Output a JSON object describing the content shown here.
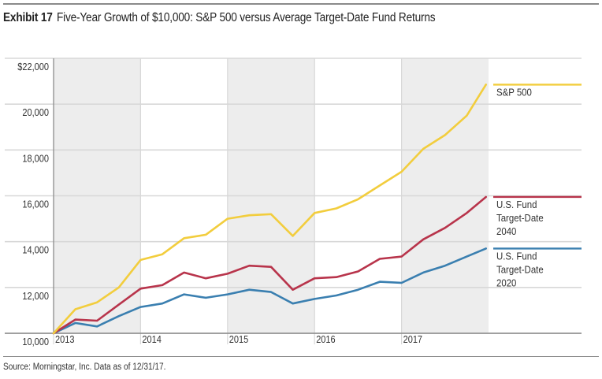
{
  "header": {
    "exhibit": "Exhibit 17",
    "title": "Five-Year Growth of $10,000: S&P 500 versus Average Target-Date Fund Returns"
  },
  "footer": {
    "source": "Source: Morningstar, Inc. Data as of 12/31/17."
  },
  "colors": {
    "sp500": "#f2cd3d",
    "tdf2040": "#b8344b",
    "tdf2020": "#3a7fb0",
    "shade": "#ededed",
    "grid": "#d8d8d8",
    "axis": "#888888"
  },
  "chart_data": {
    "type": "line",
    "title": "Five-Year Growth of $10,000: S&P 500 versus Average Target-Date Fund Returns",
    "xlabel": "",
    "ylabel": "",
    "xlim": [
      2013.0,
      2018.0
    ],
    "ylim": [
      10000,
      22000
    ],
    "y_ticks": [
      10000,
      12000,
      14000,
      16000,
      18000,
      20000,
      22000
    ],
    "y_tick_labels": [
      "10,000",
      "12,000",
      "14,000",
      "16,000",
      "18,000",
      "20,000",
      "$22,000"
    ],
    "x_ticks": [
      2013,
      2014,
      2015,
      2016,
      2017
    ],
    "x_tick_labels": [
      "2013",
      "2014",
      "2015",
      "2016",
      "2017"
    ],
    "shaded_years": [
      2013,
      2015,
      2017
    ],
    "x": [
      2013.0,
      2013.25,
      2013.5,
      2013.75,
      2014.0,
      2014.25,
      2014.5,
      2014.75,
      2015.0,
      2015.25,
      2015.5,
      2015.75,
      2016.0,
      2016.25,
      2016.5,
      2016.75,
      2017.0,
      2017.25,
      2017.5,
      2017.75,
      2017.97
    ],
    "series": [
      {
        "name": "S&P 500",
        "label_lines": [
          "S&P 500"
        ],
        "color_key": "sp500",
        "values": [
          10000,
          11050,
          11350,
          12000,
          13200,
          13450,
          14150,
          14300,
          15000,
          15150,
          15200,
          14250,
          15250,
          15450,
          15850,
          16450,
          17050,
          18050,
          18650,
          19500,
          20850
        ]
      },
      {
        "name": "U.S. Fund Target-Date 2040",
        "label_lines": [
          "U.S. Fund",
          "Target-Date",
          "2040"
        ],
        "color_key": "tdf2040",
        "values": [
          10000,
          10600,
          10550,
          11250,
          11950,
          12100,
          12650,
          12400,
          12600,
          12950,
          12900,
          11900,
          12400,
          12450,
          12700,
          13250,
          13350,
          14100,
          14600,
          15250,
          15950
        ]
      },
      {
        "name": "U.S. Fund Target-Date 2020",
        "label_lines": [
          "U.S. Fund",
          "Target-Date",
          "2020"
        ],
        "color_key": "tdf2020",
        "values": [
          10000,
          10450,
          10300,
          10750,
          11150,
          11300,
          11700,
          11550,
          11700,
          11900,
          11800,
          11300,
          11500,
          11650,
          11900,
          12250,
          12200,
          12650,
          12950,
          13350,
          13700
        ]
      }
    ]
  }
}
